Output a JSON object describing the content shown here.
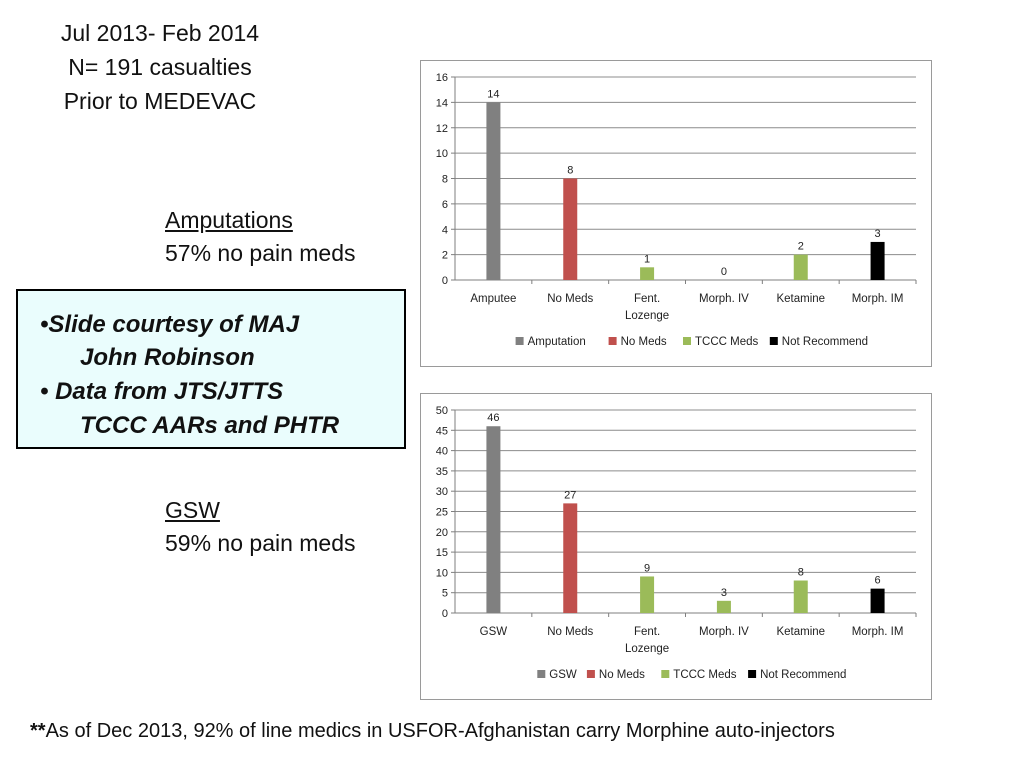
{
  "header": {
    "lines": [
      "Jul 2013- Feb 2014",
      "N= 191 casualties",
      "Prior to MEDEVAC"
    ]
  },
  "amputations": {
    "title": "Amputations",
    "stat": "57% no pain meds"
  },
  "gsw": {
    "title": "GSW",
    "stat": "59% no pain meds"
  },
  "note": {
    "line1": "•Slide courtesy of MAJ",
    "line2": "John Robinson",
    "line3": "• Data from JTS/JTTS",
    "line4": "TCCC AARs and PHTR"
  },
  "footer": {
    "mark": "**",
    "text": "As of Dec 2013, 92% of line medics in USFOR-Afghanistan carry Morphine auto-injectors"
  },
  "chart_data": [
    {
      "type": "bar",
      "categories": [
        "Amputee",
        "No Meds",
        "Fent.\nLozenge",
        "Morph.  IV",
        "Ketamine",
        "Morph. IM"
      ],
      "values": [
        14,
        8,
        1,
        0,
        2,
        3
      ],
      "labels": [
        "14",
        "8",
        "1",
        "0",
        "2",
        "3"
      ],
      "bar_colors": [
        "#808080",
        "#c0504d",
        "#9bbb59",
        "#9bbb59",
        "#9bbb59",
        "#000000"
      ],
      "legend": [
        {
          "name": "Amputation",
          "color": "#808080"
        },
        {
          "name": "No Meds",
          "color": "#c0504d"
        },
        {
          "name": "TCCC Meds",
          "color": "#9bbb59"
        },
        {
          "name": "Not Recommend",
          "color": "#000000"
        }
      ],
      "legend_position": "bottom",
      "ylim": [
        0,
        16
      ],
      "ytick_step": 2,
      "grid": true
    },
    {
      "type": "bar",
      "categories": [
        "GSW",
        "No Meds",
        "Fent.\nLozenge",
        "Morph.  IV",
        "Ketamine",
        "Morph. IM"
      ],
      "values": [
        46,
        27,
        9,
        3,
        8,
        6
      ],
      "labels": [
        "46",
        "27",
        "9",
        "3",
        "8",
        "6"
      ],
      "bar_colors": [
        "#808080",
        "#c0504d",
        "#9bbb59",
        "#9bbb59",
        "#9bbb59",
        "#000000"
      ],
      "legend": [
        {
          "name": "GSW",
          "color": "#808080"
        },
        {
          "name": "No Meds",
          "color": "#c0504d"
        },
        {
          "name": "TCCC Meds",
          "color": "#9bbb59"
        },
        {
          "name": "Not Recommend",
          "color": "#000000"
        }
      ],
      "legend_position": "bottom",
      "ylim": [
        0,
        50
      ],
      "ytick_step": 5,
      "grid": true
    }
  ]
}
